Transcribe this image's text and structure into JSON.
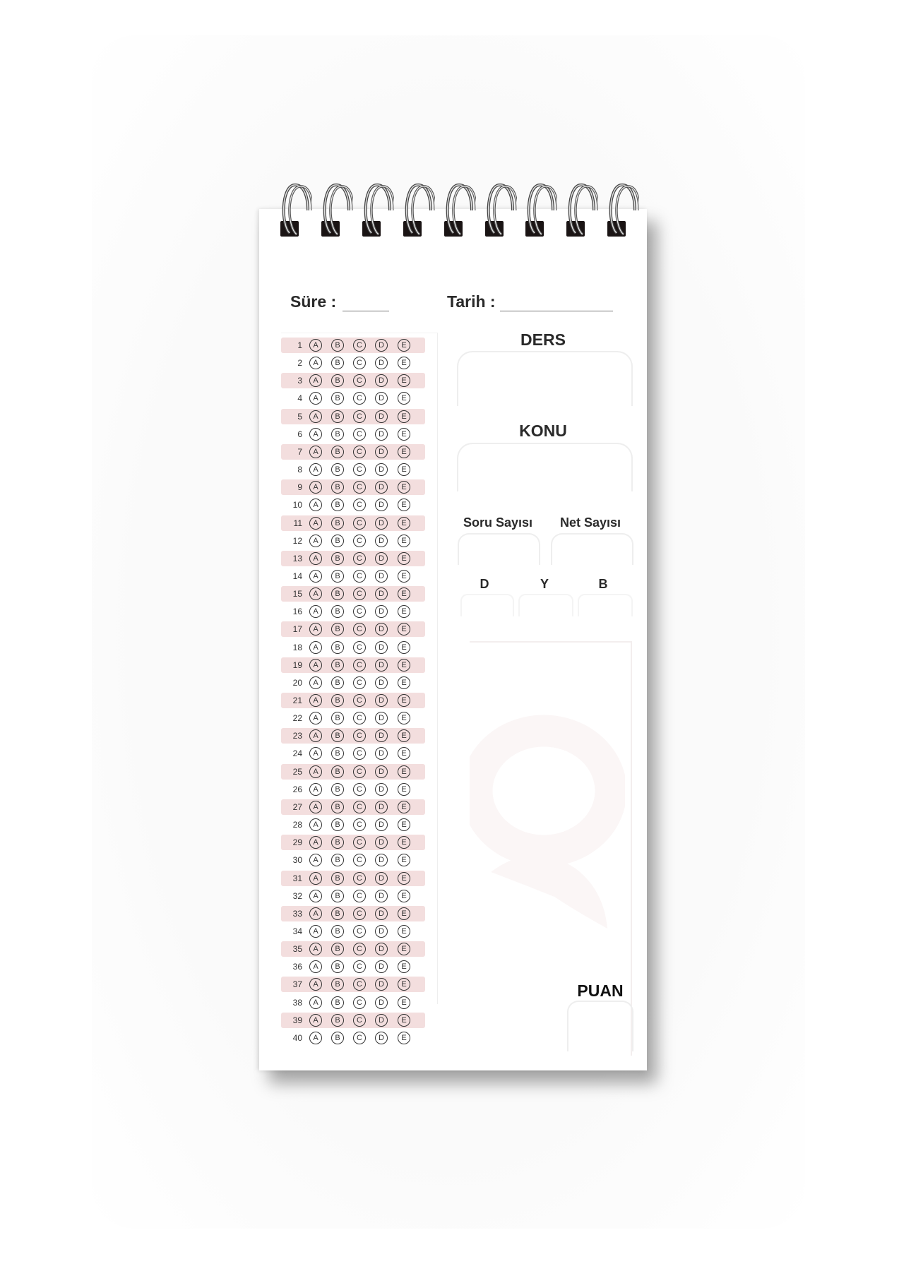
{
  "header": {
    "sure_label": "Süre :",
    "tarih_label": "Tarih :"
  },
  "answer_sheet": {
    "options": [
      "A",
      "B",
      "C",
      "D",
      "E"
    ],
    "questions": [
      "1",
      "2",
      "3",
      "4",
      "5",
      "6",
      "7",
      "8",
      "9",
      "10",
      "11",
      "12",
      "13",
      "14",
      "15",
      "16",
      "17",
      "18",
      "19",
      "20",
      "21",
      "22",
      "23",
      "24",
      "25",
      "26",
      "27",
      "28",
      "29",
      "30",
      "31",
      "32",
      "33",
      "34",
      "35",
      "36",
      "37",
      "38",
      "39",
      "40"
    ]
  },
  "fields": {
    "ders": "DERS",
    "konu": "KONU",
    "soru_sayisi": "Soru Sayısı",
    "net_sayisi": "Net Sayısı",
    "dogru": "D",
    "yanlis": "Y",
    "bos": "B",
    "puan": "PUAN"
  },
  "colors": {
    "row_shade": "#f3dede",
    "ring_metal": "#555555",
    "binding_tab": "#1a1414"
  }
}
